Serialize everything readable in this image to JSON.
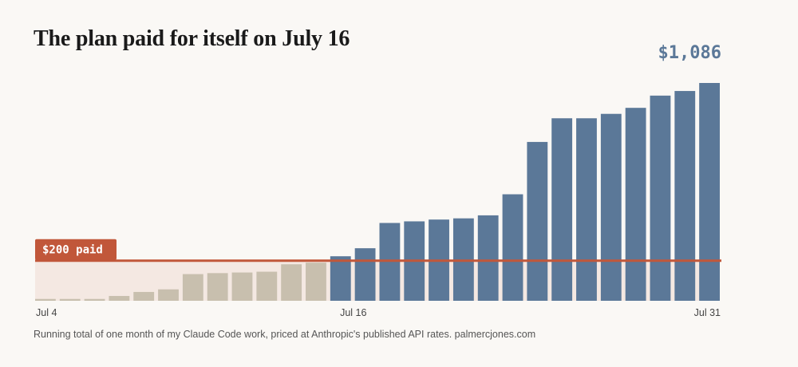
{
  "title": "The plan paid for itself on July 16",
  "total_label": "$1,086",
  "threshold_label": "$200 paid",
  "footnote": "Running total of one month of my Claude Code work, priced at Anthropic's published API rates.  palmercjones.com",
  "colors": {
    "before": "#c8bfae",
    "after": "#5b7898",
    "threshold": "#c1573a",
    "band": "#f4e8e2",
    "total": "#5b7898"
  },
  "chart_data": {
    "type": "bar",
    "xlabel": "",
    "ylabel": "",
    "categories": [
      "Jul 4",
      "Jul 5",
      "Jul 6",
      "Jul 7",
      "Jul 8",
      "Jul 9",
      "Jul 10",
      "Jul 11",
      "Jul 12",
      "Jul 13",
      "Jul 14",
      "Jul 15",
      "Jul 16",
      "Jul 17",
      "Jul 18",
      "Jul 19",
      "Jul 20",
      "Jul 21",
      "Jul 22",
      "Jul 23",
      "Jul 24",
      "Jul 25",
      "Jul 26",
      "Jul 27",
      "Jul 28",
      "Jul 29",
      "Jul 30",
      "Jul 31"
    ],
    "values": [
      9,
      9,
      9,
      24,
      44,
      57,
      133,
      138,
      141,
      145,
      182,
      190,
      222,
      262,
      388,
      396,
      405,
      411,
      426,
      531,
      792,
      910,
      910,
      932,
      962,
      1023,
      1046,
      1086
    ],
    "visible_tick_labels": [
      "Jul 4",
      "Jul 16",
      "Jul 31"
    ],
    "threshold": 200,
    "ylim": [
      0,
      1086
    ]
  }
}
